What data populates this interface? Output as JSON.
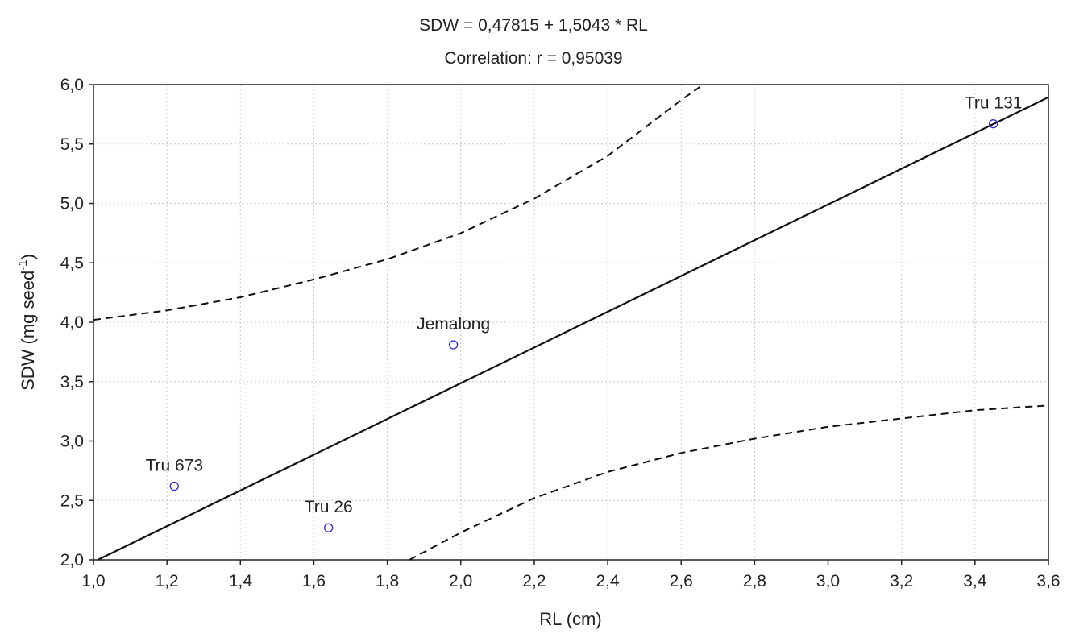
{
  "chart_data": {
    "type": "scatter",
    "title": "SDW = 0,47815 + 1,5043 * RL",
    "subtitle": "Correlation: r = 0,95039",
    "xlabel": "RL (cm)",
    "ylabel_main": "SDW (mg seed",
    "ylabel_sup": "-1",
    "ylabel_close": ")",
    "xlim": [
      1.0,
      3.6
    ],
    "ylim": [
      2.0,
      6.0
    ],
    "x_ticks": [
      1.0,
      1.2,
      1.4,
      1.6,
      1.8,
      2.0,
      2.2,
      2.4,
      2.6,
      2.8,
      3.0,
      3.2,
      3.4,
      3.6
    ],
    "x_tick_labels": [
      "1,0",
      "1,2",
      "1,4",
      "1,6",
      "1,8",
      "2,0",
      "2,2",
      "2,4",
      "2,6",
      "2,8",
      "3,0",
      "3,2",
      "3,4",
      "3,6"
    ],
    "y_ticks": [
      2.0,
      2.5,
      3.0,
      3.5,
      4.0,
      4.5,
      5.0,
      5.5,
      6.0
    ],
    "y_tick_labels": [
      "2,0",
      "2,5",
      "3,0",
      "3,5",
      "4,0",
      "4,5",
      "5,0",
      "5,5",
      "6,0"
    ],
    "grid": true,
    "points": [
      {
        "label": "Tru 673",
        "x": 1.22,
        "y": 2.62
      },
      {
        "label": "Tru 26",
        "x": 1.64,
        "y": 2.27
      },
      {
        "label": "Jemalong",
        "x": 1.98,
        "y": 3.81
      },
      {
        "label": "Tru 131",
        "x": 3.45,
        "y": 5.67
      }
    ],
    "regression": {
      "intercept": 0.47815,
      "slope": 1.5043
    },
    "upper_band": [
      [
        1.0,
        4.02
      ],
      [
        1.2,
        4.1
      ],
      [
        1.4,
        4.21
      ],
      [
        1.6,
        4.36
      ],
      [
        1.8,
        4.53
      ],
      [
        2.0,
        4.75
      ],
      [
        2.2,
        5.04
      ],
      [
        2.4,
        5.4
      ],
      [
        2.6,
        5.87
      ],
      [
        2.66,
        6.0
      ]
    ],
    "lower_band": [
      [
        1.86,
        2.0
      ],
      [
        2.0,
        2.23
      ],
      [
        2.2,
        2.52
      ],
      [
        2.4,
        2.74
      ],
      [
        2.6,
        2.9
      ],
      [
        2.8,
        3.02
      ],
      [
        3.0,
        3.12
      ],
      [
        3.2,
        3.19
      ],
      [
        3.4,
        3.26
      ],
      [
        3.6,
        3.3
      ]
    ],
    "colors": {
      "points": "#2b2bd6",
      "line": "#111111",
      "band": "#111111",
      "axis": "#222222"
    }
  }
}
